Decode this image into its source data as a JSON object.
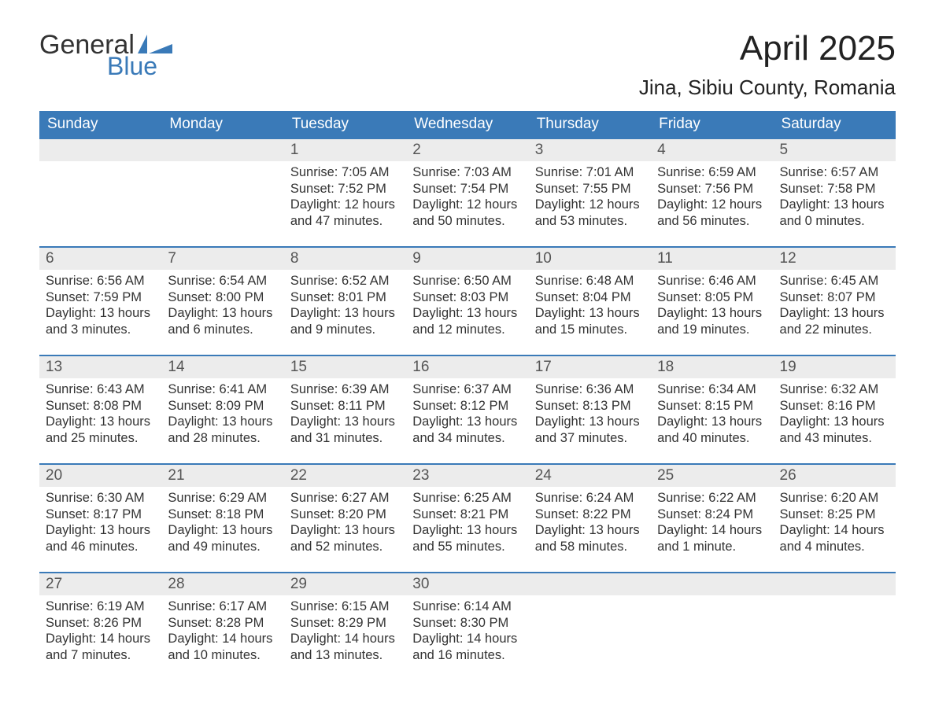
{
  "logo": {
    "text1": "General",
    "text2": "Blue",
    "accent": "#3a7ab8"
  },
  "title": {
    "month": "April 2025",
    "location": "Jina, Sibiu County, Romania"
  },
  "colors": {
    "header_bg": "#3a7ab8",
    "header_text": "#ffffff",
    "daynum_bg": "#ececec",
    "divider": "#3a7ab8",
    "body_text": "#333333"
  },
  "day_headers": [
    "Sunday",
    "Monday",
    "Tuesday",
    "Wednesday",
    "Thursday",
    "Friday",
    "Saturday"
  ],
  "weeks": [
    [
      {
        "n": "",
        "lines": []
      },
      {
        "n": "",
        "lines": []
      },
      {
        "n": "1",
        "lines": [
          "Sunrise: 7:05 AM",
          "Sunset: 7:52 PM",
          "Daylight: 12 hours",
          "and 47 minutes."
        ]
      },
      {
        "n": "2",
        "lines": [
          "Sunrise: 7:03 AM",
          "Sunset: 7:54 PM",
          "Daylight: 12 hours",
          "and 50 minutes."
        ]
      },
      {
        "n": "3",
        "lines": [
          "Sunrise: 7:01 AM",
          "Sunset: 7:55 PM",
          "Daylight: 12 hours",
          "and 53 minutes."
        ]
      },
      {
        "n": "4",
        "lines": [
          "Sunrise: 6:59 AM",
          "Sunset: 7:56 PM",
          "Daylight: 12 hours",
          "and 56 minutes."
        ]
      },
      {
        "n": "5",
        "lines": [
          "Sunrise: 6:57 AM",
          "Sunset: 7:58 PM",
          "Daylight: 13 hours",
          "and 0 minutes."
        ]
      }
    ],
    [
      {
        "n": "6",
        "lines": [
          "Sunrise: 6:56 AM",
          "Sunset: 7:59 PM",
          "Daylight: 13 hours",
          "and 3 minutes."
        ]
      },
      {
        "n": "7",
        "lines": [
          "Sunrise: 6:54 AM",
          "Sunset: 8:00 PM",
          "Daylight: 13 hours",
          "and 6 minutes."
        ]
      },
      {
        "n": "8",
        "lines": [
          "Sunrise: 6:52 AM",
          "Sunset: 8:01 PM",
          "Daylight: 13 hours",
          "and 9 minutes."
        ]
      },
      {
        "n": "9",
        "lines": [
          "Sunrise: 6:50 AM",
          "Sunset: 8:03 PM",
          "Daylight: 13 hours",
          "and 12 minutes."
        ]
      },
      {
        "n": "10",
        "lines": [
          "Sunrise: 6:48 AM",
          "Sunset: 8:04 PM",
          "Daylight: 13 hours",
          "and 15 minutes."
        ]
      },
      {
        "n": "11",
        "lines": [
          "Sunrise: 6:46 AM",
          "Sunset: 8:05 PM",
          "Daylight: 13 hours",
          "and 19 minutes."
        ]
      },
      {
        "n": "12",
        "lines": [
          "Sunrise: 6:45 AM",
          "Sunset: 8:07 PM",
          "Daylight: 13 hours",
          "and 22 minutes."
        ]
      }
    ],
    [
      {
        "n": "13",
        "lines": [
          "Sunrise: 6:43 AM",
          "Sunset: 8:08 PM",
          "Daylight: 13 hours",
          "and 25 minutes."
        ]
      },
      {
        "n": "14",
        "lines": [
          "Sunrise: 6:41 AM",
          "Sunset: 8:09 PM",
          "Daylight: 13 hours",
          "and 28 minutes."
        ]
      },
      {
        "n": "15",
        "lines": [
          "Sunrise: 6:39 AM",
          "Sunset: 8:11 PM",
          "Daylight: 13 hours",
          "and 31 minutes."
        ]
      },
      {
        "n": "16",
        "lines": [
          "Sunrise: 6:37 AM",
          "Sunset: 8:12 PM",
          "Daylight: 13 hours",
          "and 34 minutes."
        ]
      },
      {
        "n": "17",
        "lines": [
          "Sunrise: 6:36 AM",
          "Sunset: 8:13 PM",
          "Daylight: 13 hours",
          "and 37 minutes."
        ]
      },
      {
        "n": "18",
        "lines": [
          "Sunrise: 6:34 AM",
          "Sunset: 8:15 PM",
          "Daylight: 13 hours",
          "and 40 minutes."
        ]
      },
      {
        "n": "19",
        "lines": [
          "Sunrise: 6:32 AM",
          "Sunset: 8:16 PM",
          "Daylight: 13 hours",
          "and 43 minutes."
        ]
      }
    ],
    [
      {
        "n": "20",
        "lines": [
          "Sunrise: 6:30 AM",
          "Sunset: 8:17 PM",
          "Daylight: 13 hours",
          "and 46 minutes."
        ]
      },
      {
        "n": "21",
        "lines": [
          "Sunrise: 6:29 AM",
          "Sunset: 8:18 PM",
          "Daylight: 13 hours",
          "and 49 minutes."
        ]
      },
      {
        "n": "22",
        "lines": [
          "Sunrise: 6:27 AM",
          "Sunset: 8:20 PM",
          "Daylight: 13 hours",
          "and 52 minutes."
        ]
      },
      {
        "n": "23",
        "lines": [
          "Sunrise: 6:25 AM",
          "Sunset: 8:21 PM",
          "Daylight: 13 hours",
          "and 55 minutes."
        ]
      },
      {
        "n": "24",
        "lines": [
          "Sunrise: 6:24 AM",
          "Sunset: 8:22 PM",
          "Daylight: 13 hours",
          "and 58 minutes."
        ]
      },
      {
        "n": "25",
        "lines": [
          "Sunrise: 6:22 AM",
          "Sunset: 8:24 PM",
          "Daylight: 14 hours",
          "and 1 minute."
        ]
      },
      {
        "n": "26",
        "lines": [
          "Sunrise: 6:20 AM",
          "Sunset: 8:25 PM",
          "Daylight: 14 hours",
          "and 4 minutes."
        ]
      }
    ],
    [
      {
        "n": "27",
        "lines": [
          "Sunrise: 6:19 AM",
          "Sunset: 8:26 PM",
          "Daylight: 14 hours",
          "and 7 minutes."
        ]
      },
      {
        "n": "28",
        "lines": [
          "Sunrise: 6:17 AM",
          "Sunset: 8:28 PM",
          "Daylight: 14 hours",
          "and 10 minutes."
        ]
      },
      {
        "n": "29",
        "lines": [
          "Sunrise: 6:15 AM",
          "Sunset: 8:29 PM",
          "Daylight: 14 hours",
          "and 13 minutes."
        ]
      },
      {
        "n": "30",
        "lines": [
          "Sunrise: 6:14 AM",
          "Sunset: 8:30 PM",
          "Daylight: 14 hours",
          "and 16 minutes."
        ]
      },
      {
        "n": "",
        "lines": []
      },
      {
        "n": "",
        "lines": []
      },
      {
        "n": "",
        "lines": []
      }
    ]
  ]
}
